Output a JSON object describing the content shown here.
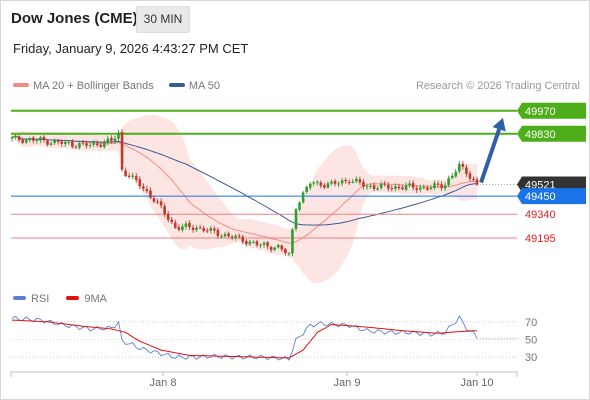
{
  "header": {
    "title": "Dow Jones (CME)",
    "interval": "30 MIN",
    "timestamp": "Friday, January 9, 2026 4:43:27 PM CET"
  },
  "legend": {
    "items": [
      {
        "label": "MA 20 + Bollinger Bands",
        "color": "#f28b82"
      },
      {
        "label": "MA 50",
        "color": "#3a5a98"
      }
    ],
    "copyright": "Research © 2026 Trading Central"
  },
  "rsi_legend": {
    "items": [
      {
        "label": "RSI",
        "color": "#5b7fd6"
      },
      {
        "label": "9MA",
        "color": "#e01010"
      }
    ]
  },
  "colors": {
    "bull": "#2e9e2e",
    "bear": "#c0392b",
    "resistance": "#4caf19",
    "support": "#f08080",
    "pivot": "#1a73e8",
    "current_price": "#333333",
    "ma20": "#f28b82",
    "ma50": "#3a5a98",
    "band_fill": "#fde0de",
    "arrow": "#2f5fa8"
  },
  "chart_data": [
    {
      "type": "candlestick",
      "title": "Dow Jones (CME) 30 MIN",
      "ylim": [
        49000,
        50060
      ],
      "x_ticks": [
        "Jan 8",
        "Jan 9",
        "Jan 10"
      ],
      "price_levels": [
        {
          "label": "49970",
          "value": 49970,
          "kind": "resistance"
        },
        {
          "label": "49830",
          "value": 49830,
          "kind": "resistance"
        },
        {
          "label": "49521",
          "value": 49521,
          "kind": "current"
        },
        {
          "label": "49450",
          "value": 49450,
          "kind": "pivot"
        },
        {
          "label": "49340",
          "value": 49340,
          "kind": "support"
        },
        {
          "label": "49195",
          "value": 49195,
          "kind": "support"
        }
      ],
      "close_anchors": [
        [
          0,
          49800
        ],
        [
          8,
          49790
        ],
        [
          15,
          49770
        ],
        [
          22,
          49760
        ],
        [
          28,
          49785
        ],
        [
          30,
          49830
        ],
        [
          31,
          49610
        ],
        [
          36,
          49520
        ],
        [
          40,
          49430
        ],
        [
          46,
          49260
        ],
        [
          52,
          49260
        ],
        [
          56,
          49235
        ],
        [
          64,
          49190
        ],
        [
          70,
          49150
        ],
        [
          75,
          49140
        ],
        [
          78,
          49090
        ],
        [
          80,
          49390
        ],
        [
          84,
          49530
        ],
        [
          90,
          49520
        ],
        [
          95,
          49550
        ],
        [
          100,
          49510
        ],
        [
          106,
          49505
        ],
        [
          112,
          49505
        ],
        [
          118,
          49500
        ],
        [
          122,
          49525
        ],
        [
          126,
          49630
        ],
        [
          128,
          49600
        ],
        [
          131,
          49521
        ]
      ],
      "arrow": {
        "from": 49521,
        "to": 49970
      }
    },
    {
      "type": "line",
      "title": "RSI",
      "ylim": [
        20,
        80
      ],
      "y_ticks": [
        70,
        50,
        30
      ],
      "series": [
        {
          "name": "RSI",
          "anchors": [
            [
              0,
              74
            ],
            [
              8,
              72
            ],
            [
              15,
              66
            ],
            [
              22,
              62
            ],
            [
              28,
              63
            ],
            [
              30,
              69
            ],
            [
              31,
              48
            ],
            [
              34,
              44
            ],
            [
              36,
              40
            ],
            [
              40,
              36
            ],
            [
              46,
              30
            ],
            [
              52,
              30
            ],
            [
              56,
              31
            ],
            [
              64,
              30
            ],
            [
              70,
              30
            ],
            [
              75,
              29
            ],
            [
              78,
              28
            ],
            [
              80,
              49
            ],
            [
              84,
              66
            ],
            [
              87,
              68
            ],
            [
              90,
              67
            ],
            [
              95,
              66
            ],
            [
              100,
              60
            ],
            [
              106,
              58
            ],
            [
              112,
              58
            ],
            [
              118,
              56
            ],
            [
              122,
              58
            ],
            [
              126,
              75
            ],
            [
              128,
              63
            ],
            [
              131,
              53
            ]
          ]
        },
        {
          "name": "9MA",
          "anchors": [
            [
              0,
              72
            ],
            [
              10,
              70
            ],
            [
              20,
              65
            ],
            [
              28,
              62
            ],
            [
              32,
              58
            ],
            [
              36,
              48
            ],
            [
              42,
              38
            ],
            [
              50,
              32
            ],
            [
              60,
              31
            ],
            [
              70,
              30
            ],
            [
              78,
              29
            ],
            [
              82,
              38
            ],
            [
              86,
              58
            ],
            [
              90,
              67
            ],
            [
              100,
              64
            ],
            [
              110,
              60
            ],
            [
              120,
              57
            ],
            [
              126,
              59
            ],
            [
              131,
              60
            ]
          ]
        }
      ]
    }
  ]
}
